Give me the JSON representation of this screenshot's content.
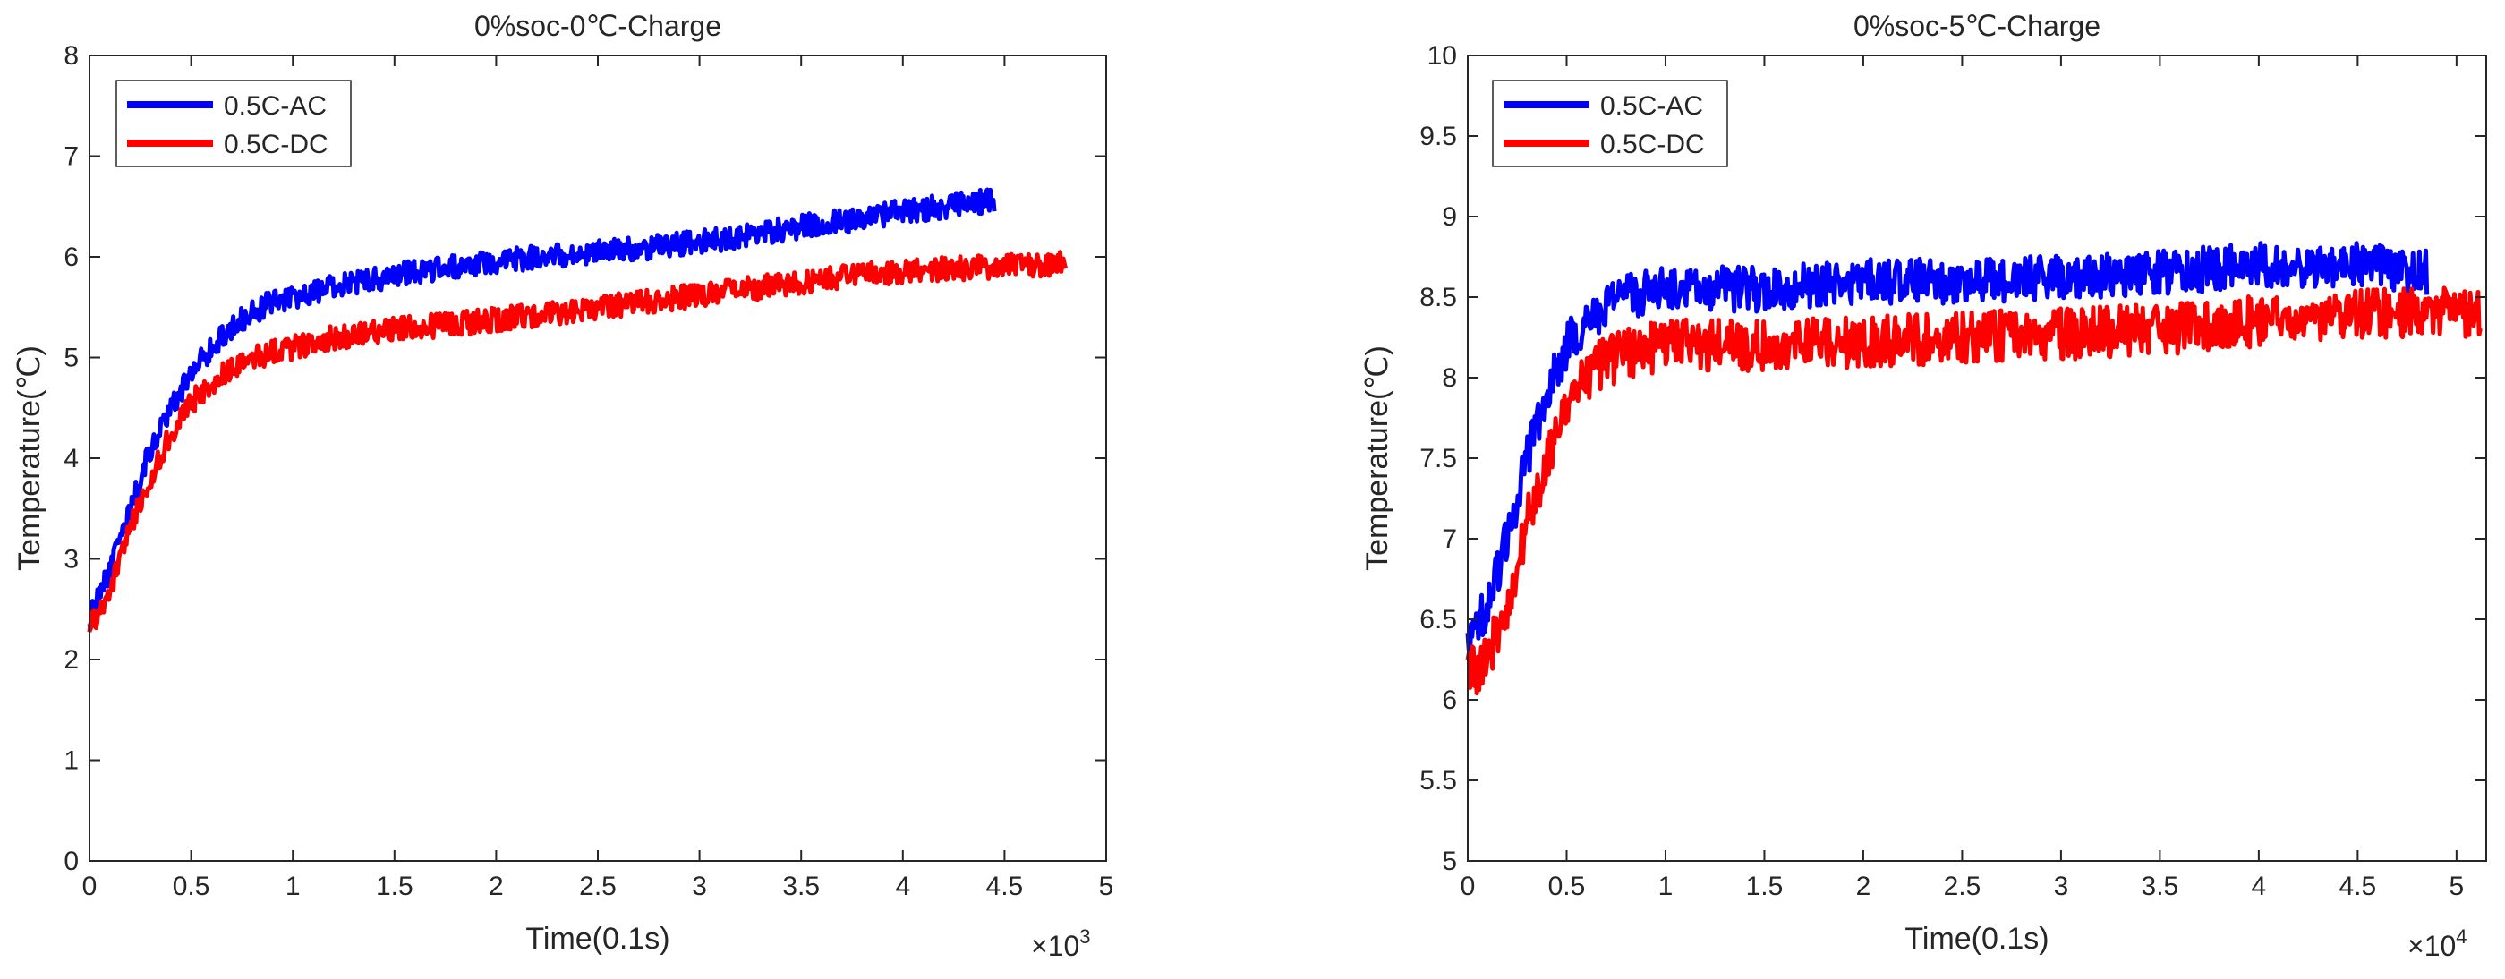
{
  "figure_caption": "",
  "chart_data": [
    {
      "id": "left",
      "type": "line",
      "title": "0%soc-0℃-Charge",
      "xlabel": "Time(0.1s)",
      "ylabel": "Temperature(℃)",
      "xlim": [
        0,
        5000
      ],
      "ylim": [
        0,
        8
      ],
      "xtick_values": [
        0,
        500,
        1000,
        1500,
        2000,
        2500,
        3000,
        3500,
        4000,
        4500,
        5000
      ],
      "xtick_labels": [
        "0",
        "0.5",
        "1",
        "1.5",
        "2",
        "2.5",
        "3",
        "3.5",
        "4",
        "4.5",
        "5"
      ],
      "ytick_values": [
        0,
        1,
        2,
        3,
        4,
        5,
        6,
        7,
        8
      ],
      "ytick_labels": [
        "0",
        "1",
        "2",
        "3",
        "4",
        "5",
        "6",
        "7",
        "8"
      ],
      "x_multiplier": {
        "base": "×10",
        "exp": "3"
      },
      "legend_position": "top-left",
      "grid": false,
      "series": [
        {
          "name": "0.5C-AC",
          "color": "#0000ff",
          "noise": 0.12,
          "x": [
            0,
            100,
            200,
            300,
            400,
            500,
            600,
            700,
            800,
            900,
            1000,
            1200,
            1400,
            1600,
            1800,
            2000,
            2200,
            2500,
            2800,
            3000,
            3200,
            3500,
            3700,
            4000,
            4200,
            4400,
            4450
          ],
          "y": [
            2.4,
            2.9,
            3.5,
            4.1,
            4.5,
            4.85,
            5.1,
            5.3,
            5.45,
            5.55,
            5.6,
            5.7,
            5.78,
            5.85,
            5.9,
            5.95,
            6.0,
            6.05,
            6.1,
            6.15,
            6.2,
            6.3,
            6.35,
            6.45,
            6.5,
            6.55,
            6.55
          ]
        },
        {
          "name": "0.5C-DC",
          "color": "#ff0000",
          "noise": 0.12,
          "x": [
            0,
            100,
            200,
            300,
            400,
            500,
            600,
            700,
            800,
            900,
            1000,
            1200,
            1400,
            1600,
            1800,
            2000,
            2200,
            2500,
            2800,
            3000,
            3200,
            3500,
            3700,
            4000,
            4200,
            4400,
            4600,
            4800
          ],
          "y": [
            2.3,
            2.7,
            3.3,
            3.8,
            4.25,
            4.55,
            4.75,
            4.9,
            5.0,
            5.05,
            5.1,
            5.2,
            5.25,
            5.3,
            5.33,
            5.38,
            5.42,
            5.5,
            5.57,
            5.62,
            5.67,
            5.75,
            5.8,
            5.85,
            5.88,
            5.9,
            5.92,
            5.93
          ]
        }
      ]
    },
    {
      "id": "right",
      "type": "line",
      "title": "0%soc-5℃-Charge",
      "xlabel": "Time(0.1s)",
      "ylabel": "Temperature(℃)",
      "xlim": [
        0,
        51500
      ],
      "ylim": [
        5,
        10
      ],
      "xtick_values": [
        0,
        5000,
        10000,
        15000,
        20000,
        25000,
        30000,
        35000,
        40000,
        45000,
        50000
      ],
      "xtick_labels": [
        "0",
        "0.5",
        "1",
        "1.5",
        "2",
        "2.5",
        "3",
        "3.5",
        "4",
        "4.5",
        "5"
      ],
      "ytick_values": [
        5,
        5.5,
        6,
        6.5,
        7,
        7.5,
        8,
        8.5,
        9,
        9.5,
        10
      ],
      "ytick_labels": [
        "5",
        "5.5",
        "6",
        "6.5",
        "7",
        "7.5",
        "8",
        "8.5",
        "9",
        "9.5",
        "10"
      ],
      "x_multiplier": {
        "base": "×10",
        "exp": "4"
      },
      "legend_position": "top-left",
      "grid": false,
      "series": [
        {
          "name": "0.5C-AC",
          "color": "#0000ff",
          "noise": 0.14,
          "x": [
            0,
            500,
            1000,
            2000,
            3000,
            4000,
            5000,
            6000,
            7000,
            8000,
            10000,
            15000,
            20000,
            25000,
            30000,
            35000,
            40000,
            45000,
            48500
          ],
          "y": [
            6.3,
            6.45,
            6.6,
            7.0,
            7.5,
            7.9,
            8.2,
            8.35,
            8.45,
            8.5,
            8.55,
            8.55,
            8.6,
            8.6,
            8.62,
            8.65,
            8.7,
            8.7,
            8.65
          ]
        },
        {
          "name": "0.5C-DC",
          "color": "#ff0000",
          "noise": 0.16,
          "x": [
            0,
            500,
            1000,
            2000,
            3000,
            4000,
            5000,
            6000,
            7000,
            8000,
            10000,
            15000,
            20000,
            25000,
            30000,
            35000,
            40000,
            45000,
            51200
          ],
          "y": [
            6.2,
            6.2,
            6.25,
            6.6,
            7.1,
            7.5,
            7.8,
            8.0,
            8.1,
            8.15,
            8.2,
            8.2,
            8.22,
            8.25,
            8.27,
            8.3,
            8.35,
            8.4,
            8.4
          ]
        }
      ]
    }
  ]
}
